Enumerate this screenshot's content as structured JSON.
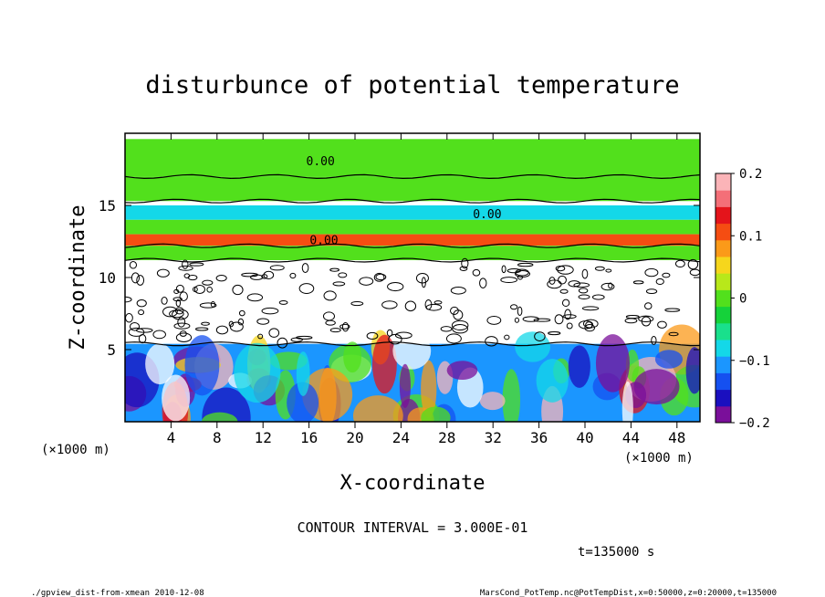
{
  "chart_data": {
    "type": "heatmap",
    "title": "disturbunce of potential temperature",
    "xlabel": "X-coordinate",
    "ylabel": "Z-coordinate",
    "x_unit_left": "(×1000 m)",
    "x_unit_right": "(×1000 m)",
    "xlim": [
      0,
      50
    ],
    "ylim": [
      0,
      20
    ],
    "xticks": [
      4,
      8,
      12,
      16,
      20,
      24,
      28,
      32,
      36,
      40,
      44,
      48
    ],
    "yticks": [
      5,
      10,
      15
    ],
    "colorbar": {
      "range": [
        -0.2,
        0.2
      ],
      "tick_values": [
        0.2,
        0.1,
        0,
        -0.1,
        -0.2
      ],
      "tick_labels": [
        "0.2",
        "0.1",
        "0",
        "−0.1",
        "−0.2"
      ],
      "colors": [
        "#7a0f9a",
        "#1a0fbf",
        "#1550f0",
        "#1b96ff",
        "#14d8e8",
        "#19e08c",
        "#15d23a",
        "#52e01c",
        "#b8e81a",
        "#f6d61c",
        "#fb9a19",
        "#f54d12",
        "#e4141b",
        "#f46f78",
        "#fbb4b8"
      ]
    },
    "contour_labels": [
      {
        "text": "0.00",
        "x": 17,
        "z": 17.8
      },
      {
        "text": "0.00",
        "x": 17.3,
        "z": 12.3
      },
      {
        "text": "0.00",
        "x": 31.5,
        "z": 14.1
      }
    ],
    "bands": [
      {
        "z_from": 17.0,
        "z_to": 19.6,
        "level": 0.0
      },
      {
        "z_from": 15.3,
        "z_to": 17.0,
        "level": 0.0
      },
      {
        "z_from": 14.0,
        "z_to": 15.0,
        "level": -0.07
      },
      {
        "z_from": 13.0,
        "z_to": 14.0,
        "level": 0.0
      },
      {
        "z_from": 12.2,
        "z_to": 13.0,
        "level": 0.1
      },
      {
        "z_from": 11.2,
        "z_to": 12.2,
        "level": 0.0
      },
      {
        "z_from": 9.6,
        "z_to": 11.2,
        "level": 0.25
      },
      {
        "z_from": 5.4,
        "z_to": 9.6,
        "level": 0.25
      },
      {
        "z_from": 0,
        "z_to": 5.4,
        "level": -0.1
      }
    ]
  },
  "annotations": {
    "contour_interval": "CONTOUR INTERVAL = 3.000E-01",
    "time": "t=135000 s",
    "footer_left": "./gpview_dist-from-xmean  2010-12-08",
    "footer_right": "MarsCond_PotTemp.nc@PotTempDist,x=0:50000,z=0:20000,t=135000"
  }
}
